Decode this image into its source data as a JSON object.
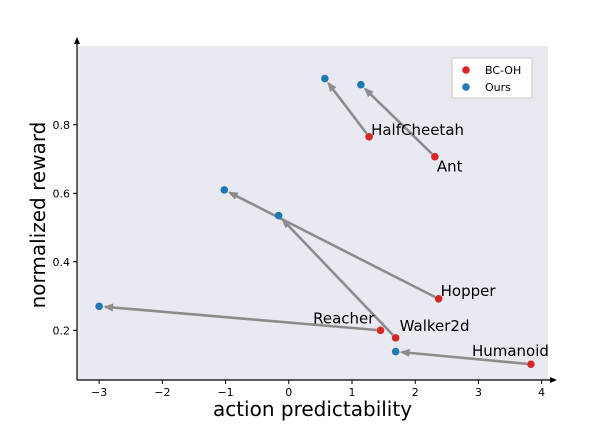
{
  "chart_data": {
    "type": "scatter",
    "title": "",
    "xlabel": "action predictability",
    "ylabel": "normalized reward",
    "xlim": [
      -3.35,
      4.1
    ],
    "ylim": [
      0.055,
      1.03
    ],
    "xticks": [
      -3,
      -2,
      -1,
      0,
      1,
      2,
      3,
      4
    ],
    "xtick_labels": [
      "−3",
      "−2",
      "−1",
      "0",
      "1",
      "2",
      "3",
      "4"
    ],
    "yticks": [
      0.2,
      0.4,
      0.6,
      0.8
    ],
    "ytick_labels": [
      "0.2",
      "0.4",
      "0.6",
      "0.8"
    ],
    "grid": false,
    "background": "#e9e9f1",
    "legend_position": "top-right",
    "series": [
      {
        "name": "BC-OH",
        "color": "#d62728",
        "points": [
          {
            "label": "HalfCheetah",
            "x": 1.27,
            "y": 0.765
          },
          {
            "label": "Ant",
            "x": 2.31,
            "y": 0.707
          },
          {
            "label": "Hopper",
            "x": 2.37,
            "y": 0.292
          },
          {
            "label": "Reacher",
            "x": 1.45,
            "y": 0.2
          },
          {
            "label": "Walker2d",
            "x": 1.69,
            "y": 0.178
          },
          {
            "label": "Humanoid",
            "x": 3.83,
            "y": 0.101
          }
        ]
      },
      {
        "name": "Ours",
        "color": "#1f77b4",
        "points": [
          {
            "label": "HalfCheetah",
            "x": 0.57,
            "y": 0.935
          },
          {
            "label": "Ant",
            "x": 1.14,
            "y": 0.917
          },
          {
            "label": "Hopper",
            "x": -1.02,
            "y": 0.61
          },
          {
            "label": "Reacher",
            "x": -3.0,
            "y": 0.27
          },
          {
            "label": "Walker2d",
            "x": -0.16,
            "y": 0.535
          },
          {
            "label": "Humanoid",
            "x": 1.69,
            "y": 0.138
          }
        ]
      }
    ],
    "arrow_color": "#8c8c8c"
  }
}
